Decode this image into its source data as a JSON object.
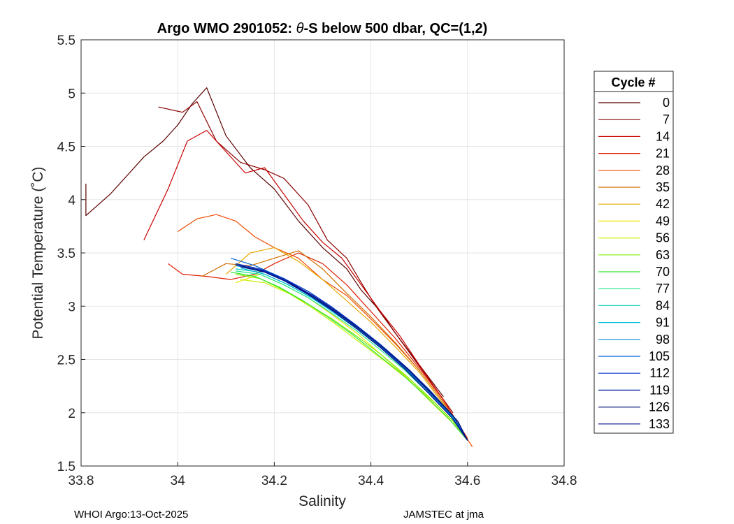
{
  "chart_data": {
    "type": "line",
    "title_prefix": "Argo WMO 2901052: ",
    "title_theta": "θ",
    "title_suffix": "-S below 500 dbar,  QC=(1,2)",
    "xlabel": "Salinity",
    "ylabel": "Potential Temperature (˚C)",
    "xlim": [
      33.8,
      34.8
    ],
    "ylim": [
      1.5,
      5.5
    ],
    "xticks": [
      33.8,
      34,
      34.2,
      34.4,
      34.6,
      34.8
    ],
    "xtick_labels": [
      "33.8",
      "34",
      "34.2",
      "34.4",
      "34.6",
      "34.8"
    ],
    "yticks": [
      1.5,
      2,
      2.5,
      3,
      3.5,
      4,
      4.5,
      5,
      5.5
    ],
    "ytick_labels": [
      "1.5",
      "2",
      "2.5",
      "3",
      "3.5",
      "4",
      "4.5",
      "5",
      "5.5"
    ],
    "grid": true,
    "legend": {
      "title": "Cycle #",
      "placement": "right-outside",
      "entries": [
        {
          "label": "0",
          "color": "#5a0000"
        },
        {
          "label": "7",
          "color": "#8b0000"
        },
        {
          "label": "14",
          "color": "#c80000"
        },
        {
          "label": "21",
          "color": "#e01e00"
        },
        {
          "label": "28",
          "color": "#f04a00"
        },
        {
          "label": "35",
          "color": "#d26e00"
        },
        {
          "label": "42",
          "color": "#e6a800"
        },
        {
          "label": "49",
          "color": "#f0e400"
        },
        {
          "label": "56",
          "color": "#c8f000"
        },
        {
          "label": "63",
          "color": "#7ef000"
        },
        {
          "label": "70",
          "color": "#32e632"
        },
        {
          "label": "77",
          "color": "#1ee68c"
        },
        {
          "label": "84",
          "color": "#14d2be"
        },
        {
          "label": "91",
          "color": "#00bede"
        },
        {
          "label": "98",
          "color": "#0096c8"
        },
        {
          "label": "105",
          "color": "#0064d2"
        },
        {
          "label": "112",
          "color": "#0032c8"
        },
        {
          "label": "119",
          "color": "#001ea0"
        },
        {
          "label": "126",
          "color": "#00147a"
        },
        {
          "label": "133",
          "color": "#000a8c"
        }
      ]
    },
    "series": [
      {
        "name": "0",
        "color": "#5a0000",
        "s": [
          33.81,
          33.81,
          33.86,
          33.9,
          33.93,
          33.97,
          34.0,
          34.03,
          34.06,
          34.1,
          34.15,
          34.2,
          34.25,
          34.3,
          34.35,
          34.38,
          34.42,
          34.45,
          34.5,
          34.55
        ],
        "t": [
          4.15,
          3.85,
          4.05,
          4.25,
          4.4,
          4.55,
          4.7,
          4.9,
          5.05,
          4.6,
          4.3,
          4.1,
          3.8,
          3.55,
          3.35,
          3.15,
          2.95,
          2.75,
          2.45,
          2.15
        ]
      },
      {
        "name": "7",
        "color": "#8b0000",
        "s": [
          33.96,
          34.01,
          34.04,
          34.08,
          34.13,
          34.18,
          34.22,
          34.27,
          34.31,
          34.35,
          34.38,
          34.41,
          34.45,
          34.49,
          34.53,
          34.57
        ],
        "t": [
          4.87,
          4.82,
          4.92,
          4.55,
          4.35,
          4.28,
          4.2,
          3.95,
          3.62,
          3.45,
          3.22,
          3.0,
          2.75,
          2.5,
          2.25,
          2.0
        ]
      },
      {
        "name": "14",
        "color": "#c80000",
        "s": [
          33.93,
          33.98,
          34.02,
          34.06,
          34.1,
          34.14,
          34.18,
          34.22,
          34.26,
          34.3,
          34.34,
          34.38,
          34.42,
          34.46,
          34.5,
          34.55,
          34.6
        ],
        "t": [
          3.62,
          4.1,
          4.55,
          4.65,
          4.45,
          4.25,
          4.3,
          4.05,
          3.8,
          3.6,
          3.45,
          3.2,
          2.95,
          2.72,
          2.45,
          2.12,
          1.75
        ]
      },
      {
        "name": "21",
        "color": "#e01e00",
        "s": [
          33.98,
          34.01,
          34.06,
          34.11,
          34.16,
          34.2,
          34.25,
          34.3,
          34.35,
          34.4,
          34.45,
          34.5,
          34.55,
          34.6
        ],
        "t": [
          3.4,
          3.3,
          3.28,
          3.25,
          3.3,
          3.4,
          3.5,
          3.4,
          3.2,
          2.95,
          2.7,
          2.42,
          2.12,
          1.76
        ]
      },
      {
        "name": "28",
        "color": "#f04a00",
        "s": [
          34.0,
          34.04,
          34.08,
          34.12,
          34.16,
          34.2,
          34.25,
          34.3,
          34.35,
          34.4,
          34.45,
          34.5,
          34.55,
          34.61
        ],
        "t": [
          3.7,
          3.82,
          3.86,
          3.8,
          3.65,
          3.55,
          3.45,
          3.25,
          3.1,
          2.88,
          2.65,
          2.4,
          2.1,
          1.68
        ]
      },
      {
        "name": "35",
        "color": "#d26e00",
        "s": [
          34.05,
          34.1,
          34.15,
          34.2,
          34.25,
          34.3,
          34.35,
          34.4,
          34.45,
          34.5,
          34.55,
          34.6
        ],
        "t": [
          3.28,
          3.4,
          3.38,
          3.45,
          3.52,
          3.35,
          3.12,
          2.9,
          2.66,
          2.4,
          2.1,
          1.74
        ]
      },
      {
        "name": "42",
        "color": "#e6a800",
        "s": [
          34.1,
          34.15,
          34.2,
          34.25,
          34.3,
          34.35,
          34.4,
          34.45,
          34.5,
          34.55,
          34.6
        ],
        "t": [
          3.3,
          3.5,
          3.55,
          3.42,
          3.25,
          3.05,
          2.85,
          2.62,
          2.38,
          2.08,
          1.74
        ]
      },
      {
        "name": "49",
        "color": "#f0e400",
        "s": [
          34.12,
          34.17,
          34.22,
          34.27,
          34.32,
          34.37,
          34.42,
          34.47,
          34.52,
          34.57,
          34.6
        ],
        "t": [
          3.22,
          3.3,
          3.2,
          3.08,
          2.92,
          2.75,
          2.55,
          2.35,
          2.12,
          1.9,
          1.74
        ]
      },
      {
        "name": "56",
        "color": "#c8f000",
        "s": [
          34.13,
          34.18,
          34.23,
          34.28,
          34.33,
          34.38,
          34.43,
          34.48,
          34.53,
          34.58,
          34.6
        ],
        "t": [
          3.25,
          3.22,
          3.12,
          2.98,
          2.82,
          2.65,
          2.48,
          2.3,
          2.1,
          1.88,
          1.74
        ]
      },
      {
        "name": "63",
        "color": "#7ef000",
        "s": [
          34.12,
          34.17,
          34.22,
          34.27,
          34.32,
          34.37,
          34.42,
          34.47,
          34.52,
          34.57,
          34.6
        ],
        "t": [
          3.3,
          3.26,
          3.15,
          3.02,
          2.88,
          2.72,
          2.55,
          2.36,
          2.15,
          1.92,
          1.74
        ]
      },
      {
        "name": "70",
        "color": "#32e632",
        "s": [
          34.11,
          34.16,
          34.21,
          34.26,
          34.31,
          34.36,
          34.41,
          34.46,
          34.51,
          34.56,
          34.6
        ],
        "t": [
          3.32,
          3.28,
          3.18,
          3.05,
          2.9,
          2.74,
          2.56,
          2.38,
          2.17,
          1.95,
          1.74
        ]
      },
      {
        "name": "77",
        "color": "#1ee68c",
        "s": [
          34.12,
          34.17,
          34.22,
          34.27,
          34.32,
          34.37,
          34.42,
          34.47,
          34.52,
          34.57,
          34.6
        ],
        "t": [
          3.33,
          3.3,
          3.2,
          3.08,
          2.93,
          2.77,
          2.59,
          2.4,
          2.18,
          1.95,
          1.74
        ]
      },
      {
        "name": "84",
        "color": "#14d2be",
        "s": [
          34.12,
          34.17,
          34.22,
          34.27,
          34.32,
          34.37,
          34.42,
          34.47,
          34.52,
          34.57,
          34.6
        ],
        "t": [
          3.35,
          3.32,
          3.22,
          3.1,
          2.95,
          2.79,
          2.61,
          2.42,
          2.2,
          1.96,
          1.74
        ]
      },
      {
        "name": "91",
        "color": "#00bede",
        "s": [
          34.13,
          34.18,
          34.23,
          34.28,
          34.33,
          34.38,
          34.43,
          34.48,
          34.53,
          34.58,
          34.6
        ],
        "t": [
          3.36,
          3.3,
          3.2,
          3.07,
          2.92,
          2.76,
          2.58,
          2.38,
          2.16,
          1.9,
          1.74
        ]
      },
      {
        "name": "98",
        "color": "#0096c8",
        "s": [
          34.12,
          34.17,
          34.22,
          34.27,
          34.32,
          34.37,
          34.42,
          34.47,
          34.52,
          34.57,
          34.6
        ],
        "t": [
          3.38,
          3.34,
          3.25,
          3.12,
          2.97,
          2.8,
          2.62,
          2.42,
          2.2,
          1.96,
          1.74
        ]
      },
      {
        "name": "105",
        "color": "#0064d2",
        "s": [
          34.11,
          34.16,
          34.21,
          34.26,
          34.31,
          34.36,
          34.41,
          34.46,
          34.51,
          34.56,
          34.6
        ],
        "t": [
          3.45,
          3.38,
          3.28,
          3.15,
          3.0,
          2.84,
          2.66,
          2.46,
          2.24,
          2.0,
          1.74
        ]
      },
      {
        "name": "112",
        "color": "#0032c8",
        "s": [
          34.12,
          34.17,
          34.22,
          34.27,
          34.32,
          34.37,
          34.42,
          34.47,
          34.52,
          34.57,
          34.6
        ],
        "t": [
          3.4,
          3.35,
          3.26,
          3.14,
          2.99,
          2.82,
          2.64,
          2.44,
          2.22,
          1.97,
          1.74
        ]
      },
      {
        "name": "119",
        "color": "#001ea0",
        "s": [
          34.13,
          34.18,
          34.23,
          34.28,
          34.33,
          34.38,
          34.43,
          34.48,
          34.53,
          34.58,
          34.6
        ],
        "t": [
          3.38,
          3.33,
          3.23,
          3.1,
          2.95,
          2.78,
          2.6,
          2.4,
          2.17,
          1.92,
          1.74
        ]
      },
      {
        "name": "126",
        "color": "#00147a",
        "s": [
          34.13,
          34.18,
          34.23,
          34.28,
          34.33,
          34.38,
          34.43,
          34.48,
          34.53,
          34.58,
          34.6
        ],
        "t": [
          3.37,
          3.32,
          3.22,
          3.09,
          2.94,
          2.77,
          2.59,
          2.39,
          2.16,
          1.92,
          1.74
        ]
      },
      {
        "name": "133",
        "color": "#000a8c",
        "s": [
          34.12,
          34.17,
          34.22,
          34.27,
          34.32,
          34.37,
          34.42,
          34.47,
          34.52,
          34.57,
          34.6
        ],
        "t": [
          3.39,
          3.34,
          3.24,
          3.11,
          2.96,
          2.79,
          2.61,
          2.41,
          2.18,
          1.94,
          1.74
        ]
      }
    ]
  },
  "footer": {
    "left": "WHOI Argo:13-Oct-2025",
    "right": "JAMSTEC at jma"
  }
}
